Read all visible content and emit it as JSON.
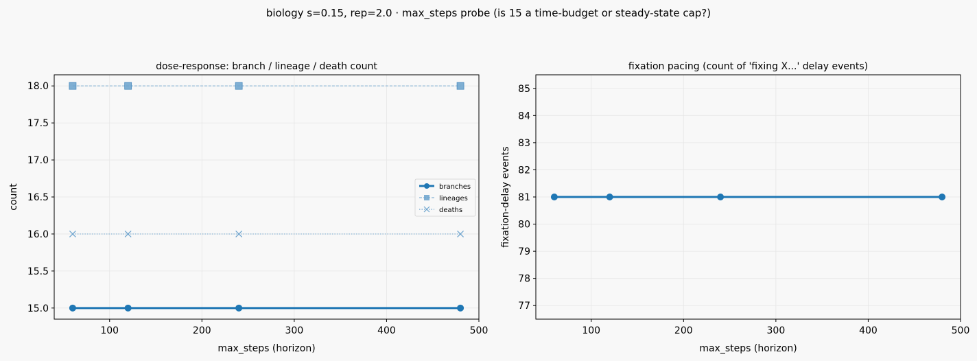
{
  "suptitle": "biology s=0.15, rep=2.0 · max_steps probe (is 15 a time-budget or steady-state cap?)",
  "colors": {
    "background": "#f8f8f8",
    "branches": "#1f77b4",
    "lineages": "#6aa2cd",
    "deaths": "#6aa2cd",
    "grid": "#e6e6e6"
  },
  "chart_data": [
    {
      "type": "line",
      "title": "dose-response: branch / lineage / death count",
      "xlabel": "max_steps (horizon)",
      "ylabel": "count",
      "x": [
        60,
        120,
        240,
        480
      ],
      "xlim": [
        40,
        500
      ],
      "ylim": [
        14.85,
        18.15
      ],
      "xticks": [
        100,
        200,
        300,
        400,
        500
      ],
      "yticks": [
        15.0,
        15.5,
        16.0,
        16.5,
        17.0,
        17.5,
        18.0
      ],
      "grid": true,
      "legend": "center-right",
      "series": [
        {
          "name": "branches",
          "values": [
            15,
            15,
            15,
            15
          ],
          "marker": "circle",
          "style": "solid"
        },
        {
          "name": "lineages",
          "values": [
            18,
            18,
            18,
            18
          ],
          "marker": "square",
          "style": "dashed"
        },
        {
          "name": "deaths",
          "values": [
            16,
            16,
            16,
            16
          ],
          "marker": "x",
          "style": "dotted"
        }
      ]
    },
    {
      "type": "line",
      "title": "fixation pacing (count of 'fixing X...' delay events)",
      "xlabel": "max_steps (horizon)",
      "ylabel": "fixation-delay events",
      "x": [
        60,
        120,
        240,
        480
      ],
      "xlim": [
        40,
        500
      ],
      "ylim": [
        76.5,
        85.5
      ],
      "xticks": [
        100,
        200,
        300,
        400,
        500
      ],
      "yticks": [
        77,
        78,
        79,
        80,
        81,
        82,
        83,
        84,
        85
      ],
      "grid": true,
      "series": [
        {
          "values": [
            81,
            81,
            81,
            81
          ],
          "marker": "circle",
          "style": "solid"
        }
      ]
    }
  ]
}
